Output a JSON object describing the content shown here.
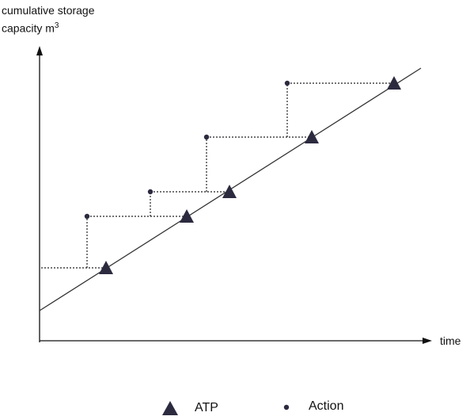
{
  "y_axis_label_line1": "cumulative storage",
  "y_axis_label_line2": "capacity m",
  "y_axis_label_sup": "3",
  "x_axis_label": "time",
  "legend": {
    "atp_label": "ATP",
    "action_label": "Action"
  },
  "colors": {
    "axis": "#111111",
    "marker": "#2b2a3f",
    "line": "#333333"
  }
}
